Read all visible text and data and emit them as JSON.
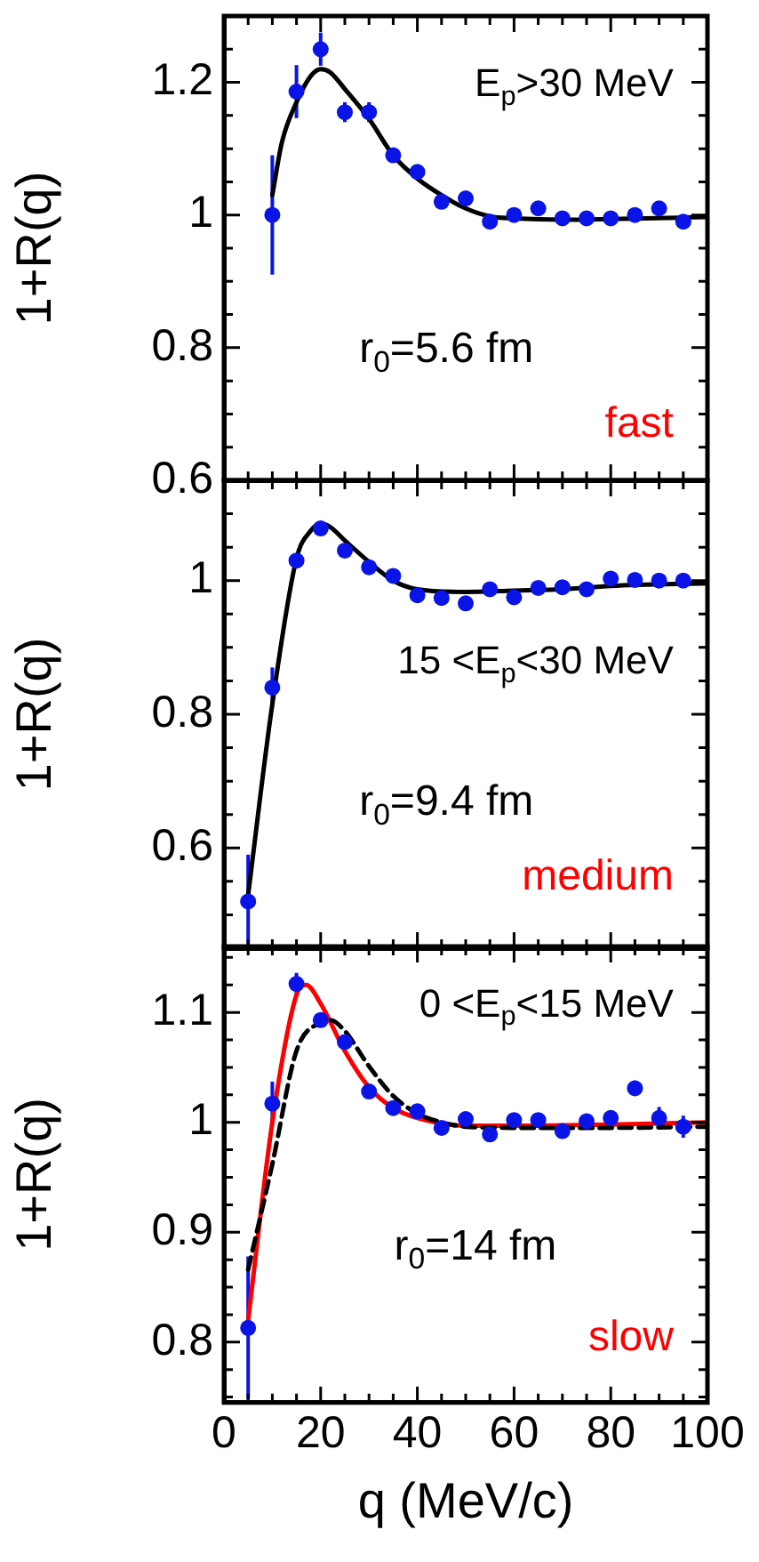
{
  "chart_data": [
    {
      "type": "scatter",
      "ylabel": "1+R(q)",
      "xlim": [
        0,
        100
      ],
      "ylim": [
        0.6,
        1.3
      ],
      "grid": false,
      "marker": "circle",
      "tick_labels": "y",
      "xticks": [
        0,
        {
          "value": 5,
          "label": null
        },
        {
          "value": 10,
          "label": null
        },
        {
          "value": 15,
          "label": null
        },
        20,
        {
          "value": 25,
          "label": null
        },
        {
          "value": 30,
          "label": null
        },
        {
          "value": 35,
          "label": null
        },
        40,
        {
          "value": 45,
          "label": null
        },
        {
          "value": 50,
          "label": null
        },
        {
          "value": 55,
          "label": null
        },
        60,
        {
          "value": 65,
          "label": null
        },
        {
          "value": 70,
          "label": null
        },
        {
          "value": 75,
          "label": null
        },
        80,
        {
          "value": 85,
          "label": null
        },
        {
          "value": 90,
          "label": null
        },
        {
          "value": 95,
          "label": null
        },
        100
      ],
      "yticks": [
        0.6,
        {
          "value": 0.65,
          "label": null
        },
        {
          "value": 0.7,
          "label": null
        },
        {
          "value": 0.75,
          "label": null
        },
        0.8,
        {
          "value": 0.85,
          "label": null
        },
        {
          "value": 0.9,
          "label": null
        },
        {
          "value": 0.95,
          "label": null
        },
        1,
        {
          "value": 1.05,
          "label": null
        },
        {
          "value": 1.1,
          "label": null
        },
        {
          "value": 1.15,
          "label": null
        },
        1.2,
        {
          "value": 1.25,
          "label": null
        }
      ],
      "annotations": [
        "E$_{p}$>30 MeV",
        "r$_{0}$=5.6 fm",
        "fast"
      ],
      "series": [
        {
          "color": "#0a14e6",
          "x": [
            10,
            15,
            20,
            25,
            30,
            35,
            40,
            45,
            50,
            55,
            60,
            65,
            70,
            75,
            80,
            85,
            90,
            95
          ],
          "values": [
            1.0,
            1.186,
            1.25,
            1.155,
            1.155,
            1.09,
            1.065,
            1.02,
            1.025,
            0.99,
            1.0,
            1.01,
            0.995,
            0.995,
            0.995,
            1.0,
            1.01,
            0.99
          ],
          "errors": [
            0.09,
            0.04,
            0.025,
            0.015,
            0.015,
            null,
            null,
            null,
            null,
            null,
            null,
            null,
            null,
            null,
            null,
            null,
            null,
            null
          ]
        },
        {
          "type": "line",
          "marker": "none",
          "color": "#000000",
          "x": [
            10,
            12,
            15,
            18,
            20,
            22,
            25,
            30,
            35,
            40,
            45,
            50,
            55,
            60,
            70,
            80,
            100
          ],
          "values": [
            1.03,
            1.11,
            1.17,
            1.21,
            1.22,
            1.215,
            1.19,
            1.145,
            1.09,
            1.055,
            1.03,
            1.01,
            0.998,
            0.995,
            0.993,
            0.994,
            0.997
          ]
        }
      ]
    },
    {
      "type": "scatter",
      "ylabel": "1+R(q)",
      "xlim": [
        0,
        100
      ],
      "ylim": [
        0.45,
        1.15
      ],
      "grid": false,
      "marker": "circle",
      "tick_labels": "y",
      "xticks": [
        0,
        {
          "value": 5,
          "label": null
        },
        {
          "value": 10,
          "label": null
        },
        {
          "value": 15,
          "label": null
        },
        20,
        {
          "value": 25,
          "label": null
        },
        {
          "value": 30,
          "label": null
        },
        {
          "value": 35,
          "label": null
        },
        40,
        {
          "value": 45,
          "label": null
        },
        {
          "value": 50,
          "label": null
        },
        {
          "value": 55,
          "label": null
        },
        60,
        {
          "value": 65,
          "label": null
        },
        {
          "value": 70,
          "label": null
        },
        {
          "value": 75,
          "label": null
        },
        80,
        {
          "value": 85,
          "label": null
        },
        {
          "value": 90,
          "label": null
        },
        {
          "value": 95,
          "label": null
        },
        100
      ],
      "yticks": [
        {
          "value": 0.5,
          "label": null
        },
        {
          "value": 0.55,
          "label": null
        },
        0.6,
        {
          "value": 0.65,
          "label": null
        },
        {
          "value": 0.7,
          "label": null
        },
        {
          "value": 0.75,
          "label": null
        },
        0.8,
        {
          "value": 0.85,
          "label": null
        },
        {
          "value": 0.9,
          "label": null
        },
        {
          "value": 0.95,
          "label": null
        },
        1,
        {
          "value": 1.05,
          "label": null
        },
        {
          "value": 1.1,
          "label": null
        }
      ],
      "annotations": [
        "15 <E$_{p}$<30 MeV",
        "r$_{0}$=9.4 fm",
        "medium"
      ],
      "series": [
        {
          "color": "#0a14e6",
          "x": [
            5,
            10,
            15,
            20,
            25,
            30,
            35,
            40,
            45,
            50,
            55,
            60,
            65,
            70,
            75,
            80,
            85,
            90,
            95
          ],
          "values": [
            0.52,
            0.84,
            1.03,
            1.078,
            1.045,
            1.02,
            1.007,
            0.978,
            0.974,
            0.966,
            0.987,
            0.975,
            0.989,
            0.99,
            0.987,
            1.003,
            1.001,
            1.0,
            1.0
          ],
          "errors": [
            0.07,
            0.03,
            0.01,
            0.01,
            null,
            null,
            null,
            null,
            null,
            null,
            null,
            null,
            null,
            null,
            null,
            null,
            null,
            null,
            null
          ]
        },
        {
          "type": "line",
          "marker": "none",
          "color": "#000000",
          "x": [
            5,
            10,
            15,
            18,
            20,
            22,
            25,
            30,
            35,
            40,
            50,
            60,
            70,
            80,
            100
          ],
          "values": [
            0.53,
            0.815,
            1.033,
            1.075,
            1.085,
            1.08,
            1.06,
            1.028,
            1.0,
            0.987,
            0.983,
            0.985,
            0.987,
            0.992,
            0.996
          ]
        }
      ]
    },
    {
      "type": "scatter",
      "ylabel": "1+R(q)",
      "xlabel": "q (MeV/c)",
      "xlim": [
        0,
        100
      ],
      "ylim": [
        0.745,
        1.16
      ],
      "grid": false,
      "marker": "circle",
      "xticks": [
        0,
        {
          "value": 5,
          "label": null
        },
        {
          "value": 10,
          "label": null
        },
        {
          "value": 15,
          "label": null
        },
        20,
        {
          "value": 25,
          "label": null
        },
        {
          "value": 30,
          "label": null
        },
        {
          "value": 35,
          "label": null
        },
        40,
        {
          "value": 45,
          "label": null
        },
        {
          "value": 50,
          "label": null
        },
        {
          "value": 55,
          "label": null
        },
        60,
        {
          "value": 65,
          "label": null
        },
        {
          "value": 70,
          "label": null
        },
        {
          "value": 75,
          "label": null
        },
        80,
        {
          "value": 85,
          "label": null
        },
        {
          "value": 90,
          "label": null
        },
        {
          "value": 95,
          "label": null
        },
        100
      ],
      "yticks": [
        {
          "value": 0.75,
          "label": null
        },
        {
          "value": 0.775,
          "label": null
        },
        0.8,
        {
          "value": 0.825,
          "label": null
        },
        {
          "value": 0.85,
          "label": null
        },
        {
          "value": 0.875,
          "label": null
        },
        0.9,
        {
          "value": 0.925,
          "label": null
        },
        {
          "value": 0.95,
          "label": null
        },
        {
          "value": 0.975,
          "label": null
        },
        1,
        {
          "value": 1.025,
          "label": null
        },
        {
          "value": 1.05,
          "label": null
        },
        {
          "value": 1.075,
          "label": null
        },
        1.1,
        {
          "value": 1.125,
          "label": null
        },
        {
          "value": 1.15,
          "label": null
        }
      ],
      "annotations": [
        "0 <E$_{p}$<15 MeV",
        "r$_{0}$=14 fm",
        "slow"
      ],
      "series": [
        {
          "color": "#0a14e6",
          "x": [
            5,
            10,
            15,
            20,
            25,
            30,
            35,
            40,
            45,
            50,
            55,
            60,
            65,
            70,
            75,
            80,
            85,
            90,
            95
          ],
          "values": [
            0.813,
            1.017,
            1.126,
            1.093,
            1.073,
            1.028,
            1.013,
            1.01,
            0.995,
            1.003,
            0.989,
            1.002,
            1.002,
            0.992,
            1.001,
            1.004,
            1.031,
            1.004,
            0.996
          ],
          "errors": [
            0.065,
            0.02,
            0.01,
            null,
            null,
            null,
            null,
            null,
            null,
            null,
            null,
            null,
            null,
            null,
            null,
            null,
            0.007,
            0.01,
            0.01
          ]
        },
        {
          "type": "line",
          "marker": "none",
          "color": "#000000",
          "line_style": "dashed",
          "x": [
            5,
            10,
            15,
            20,
            22,
            25,
            30,
            35,
            40,
            45,
            50,
            60,
            80,
            100
          ],
          "values": [
            0.866,
            0.962,
            1.065,
            1.091,
            1.093,
            1.083,
            1.051,
            1.024,
            1.008,
            1.0,
            0.996,
            0.995,
            0.995,
            0.996
          ]
        },
        {
          "type": "line",
          "marker": "none",
          "color": "#ff0000",
          "x": [
            5,
            10,
            15,
            17,
            20,
            25,
            30,
            35,
            40,
            50,
            60,
            80,
            100
          ],
          "values": [
            0.82,
            1.0,
            1.116,
            1.125,
            1.108,
            1.065,
            1.032,
            1.013,
            1.004,
            0.997,
            0.997,
            0.998,
            1.0
          ]
        }
      ]
    }
  ]
}
